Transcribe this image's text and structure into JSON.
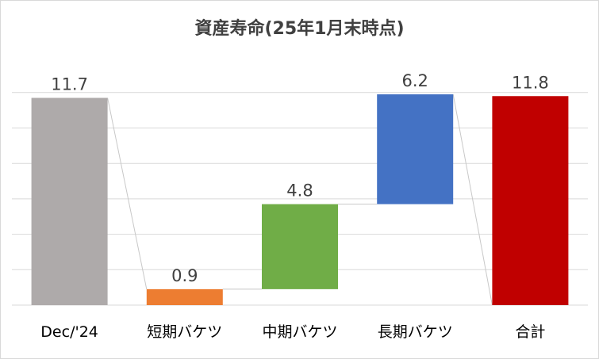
{
  "chart_data": {
    "type": "bar",
    "subtype": "waterfall",
    "title": "資産寿命(25年1月末時点)",
    "xlabel": "",
    "ylabel": "",
    "ylim": [
      0,
      14
    ],
    "grid": true,
    "legend": "none",
    "categories": [
      "Dec/'24",
      "短期バケツ",
      "中期バケツ",
      "長期バケツ",
      "合計"
    ],
    "values": [
      11.7,
      0.9,
      4.8,
      6.2,
      11.8
    ],
    "bar_kind": [
      "total",
      "increment",
      "increment",
      "increment",
      "total"
    ],
    "colors": [
      "#aeaaaa",
      "#ed7d31",
      "#70ad47",
      "#4472c4",
      "#c00000"
    ],
    "labels": [
      "11.7",
      "0.9",
      "4.8",
      "6.2",
      "11.8"
    ]
  }
}
